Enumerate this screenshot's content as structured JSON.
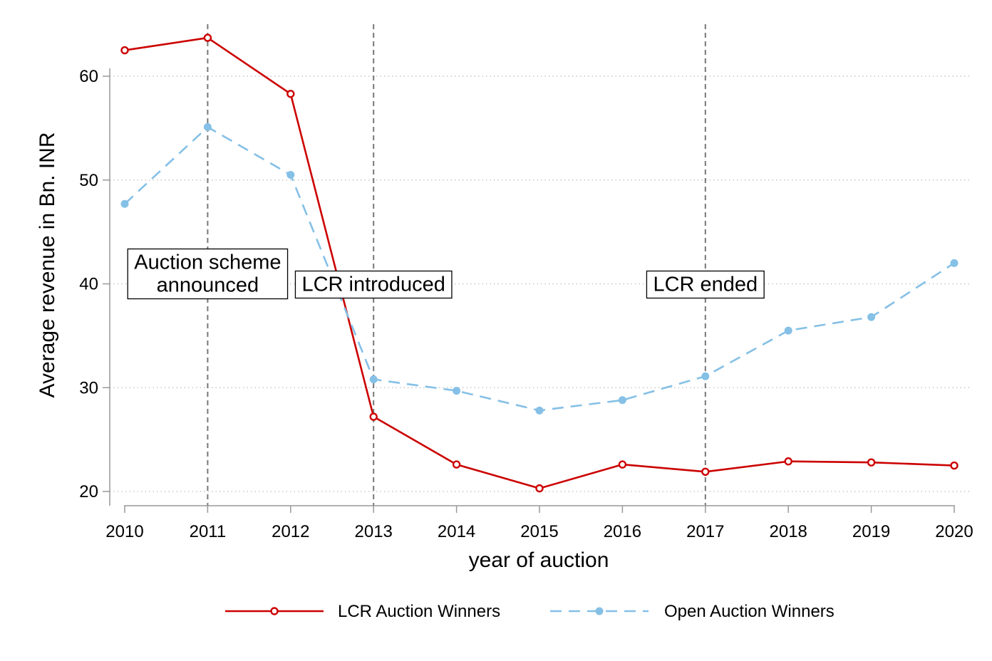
{
  "chart_data": {
    "type": "line",
    "xlabel": "year of auction",
    "ylabel": "Average revenue in Bn. INR",
    "xlim": [
      2010,
      2020
    ],
    "ylim": [
      20,
      64
    ],
    "x": [
      2010,
      2011,
      2012,
      2013,
      2014,
      2015,
      2016,
      2017,
      2018,
      2019,
      2020
    ],
    "x_ticks": [
      "2010",
      "2011",
      "2012",
      "2013",
      "2014",
      "2015",
      "2016",
      "2017",
      "2018",
      "2019",
      "2020"
    ],
    "y_ticks": [
      "20",
      "30",
      "40",
      "50",
      "60"
    ],
    "grid": "horizontal dotted",
    "series": [
      {
        "name": "LCR Auction Winners",
        "color": "#cc0000",
        "line_style": "solid",
        "marker": "hollow circle",
        "values": [
          62.5,
          63.7,
          58.3,
          27.2,
          22.6,
          20.3,
          22.6,
          21.9,
          22.9,
          22.8,
          22.5
        ]
      },
      {
        "name": "Open Auction Winners",
        "color": "#85c0e6",
        "line_style": "dashed",
        "marker": "filled circle",
        "values": [
          47.7,
          55.1,
          50.5,
          30.8,
          29.7,
          27.8,
          28.8,
          31.1,
          35.5,
          36.8,
          42.0
        ]
      }
    ],
    "vlines": [
      2011,
      2013,
      2017
    ],
    "annotations": [
      {
        "x": 2011,
        "y": 40,
        "lines": [
          "Auction scheme",
          "announced"
        ]
      },
      {
        "x": 2013,
        "y": 40,
        "lines": [
          "LCR introduced"
        ]
      },
      {
        "x": 2017,
        "y": 40,
        "lines": [
          "LCR ended"
        ]
      }
    ],
    "legend_position": "bottom"
  }
}
